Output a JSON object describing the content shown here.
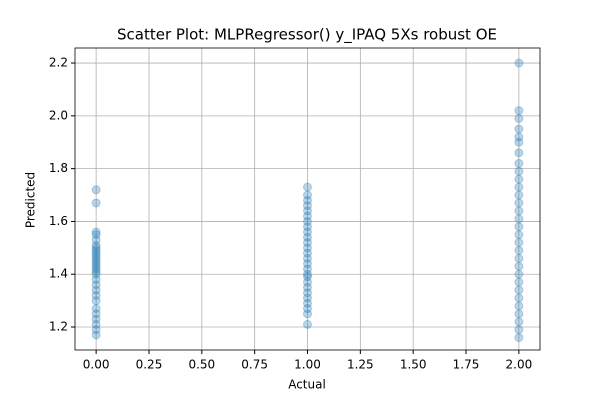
{
  "chart_data": {
    "type": "scatter",
    "title": "Scatter Plot: MLPRegressor() y_IPAQ 5Xs robust OE",
    "x_label": "Actual",
    "y_label": "Predicted",
    "series": [
      {
        "color": "#1f77b4",
        "x": [
          0,
          0,
          0,
          0,
          0,
          0,
          0,
          0,
          0,
          0,
          0,
          0,
          0,
          0,
          0,
          0,
          0,
          0,
          0,
          0,
          0,
          0,
          0,
          0,
          0,
          0,
          0,
          0,
          1,
          1,
          1,
          1,
          1,
          1,
          1,
          1,
          1,
          1,
          1,
          1,
          1,
          1,
          1,
          1,
          1,
          1,
          1,
          1,
          1,
          1,
          1,
          1,
          1,
          1,
          2,
          2,
          2,
          2,
          2,
          2,
          2,
          2,
          2,
          2,
          2,
          2,
          2,
          2,
          2,
          2,
          2,
          2,
          2,
          2,
          2,
          2,
          2,
          2,
          2,
          2,
          2,
          2,
          2,
          2
        ],
        "y": [
          1.17,
          1.19,
          1.21,
          1.23,
          1.25,
          1.27,
          1.3,
          1.32,
          1.34,
          1.36,
          1.38,
          1.4,
          1.41,
          1.42,
          1.43,
          1.44,
          1.45,
          1.46,
          1.47,
          1.48,
          1.49,
          1.5,
          1.51,
          1.53,
          1.55,
          1.56,
          1.67,
          1.72,
          1.21,
          1.25,
          1.27,
          1.29,
          1.31,
          1.33,
          1.35,
          1.37,
          1.39,
          1.4,
          1.42,
          1.44,
          1.46,
          1.48,
          1.5,
          1.52,
          1.54,
          1.56,
          1.58,
          1.6,
          1.62,
          1.64,
          1.66,
          1.68,
          1.7,
          1.73,
          1.16,
          1.19,
          1.22,
          1.25,
          1.28,
          1.31,
          1.34,
          1.37,
          1.4,
          1.43,
          1.46,
          1.49,
          1.52,
          1.55,
          1.58,
          1.61,
          1.64,
          1.67,
          1.7,
          1.73,
          1.76,
          1.79,
          1.82,
          1.86,
          1.9,
          1.92,
          1.95,
          1.99,
          2.02,
          2.2
        ]
      }
    ],
    "xlim": [
      -0.1,
      2.1
    ],
    "xticks": [
      {
        "value": 0,
        "label": "0.00"
      },
      {
        "value": 0.25,
        "label": "0.25"
      },
      {
        "value": 0.5,
        "label": "0.50"
      },
      {
        "value": 0.75,
        "label": "0.75"
      },
      {
        "value": 1,
        "label": "1.00"
      },
      {
        "value": 1.25,
        "label": "1.25"
      },
      {
        "value": 1.5,
        "label": "1.50"
      },
      {
        "value": 1.75,
        "label": "1.75"
      },
      {
        "value": 2,
        "label": "2.00"
      }
    ],
    "ylim": [
      1.113,
      2.257
    ],
    "yticks": [
      1.2,
      1.4,
      1.6,
      1.8,
      {
        "value": 2,
        "label": "2.0"
      },
      2.2
    ],
    "grid": true,
    "alpha": 0.3
  }
}
